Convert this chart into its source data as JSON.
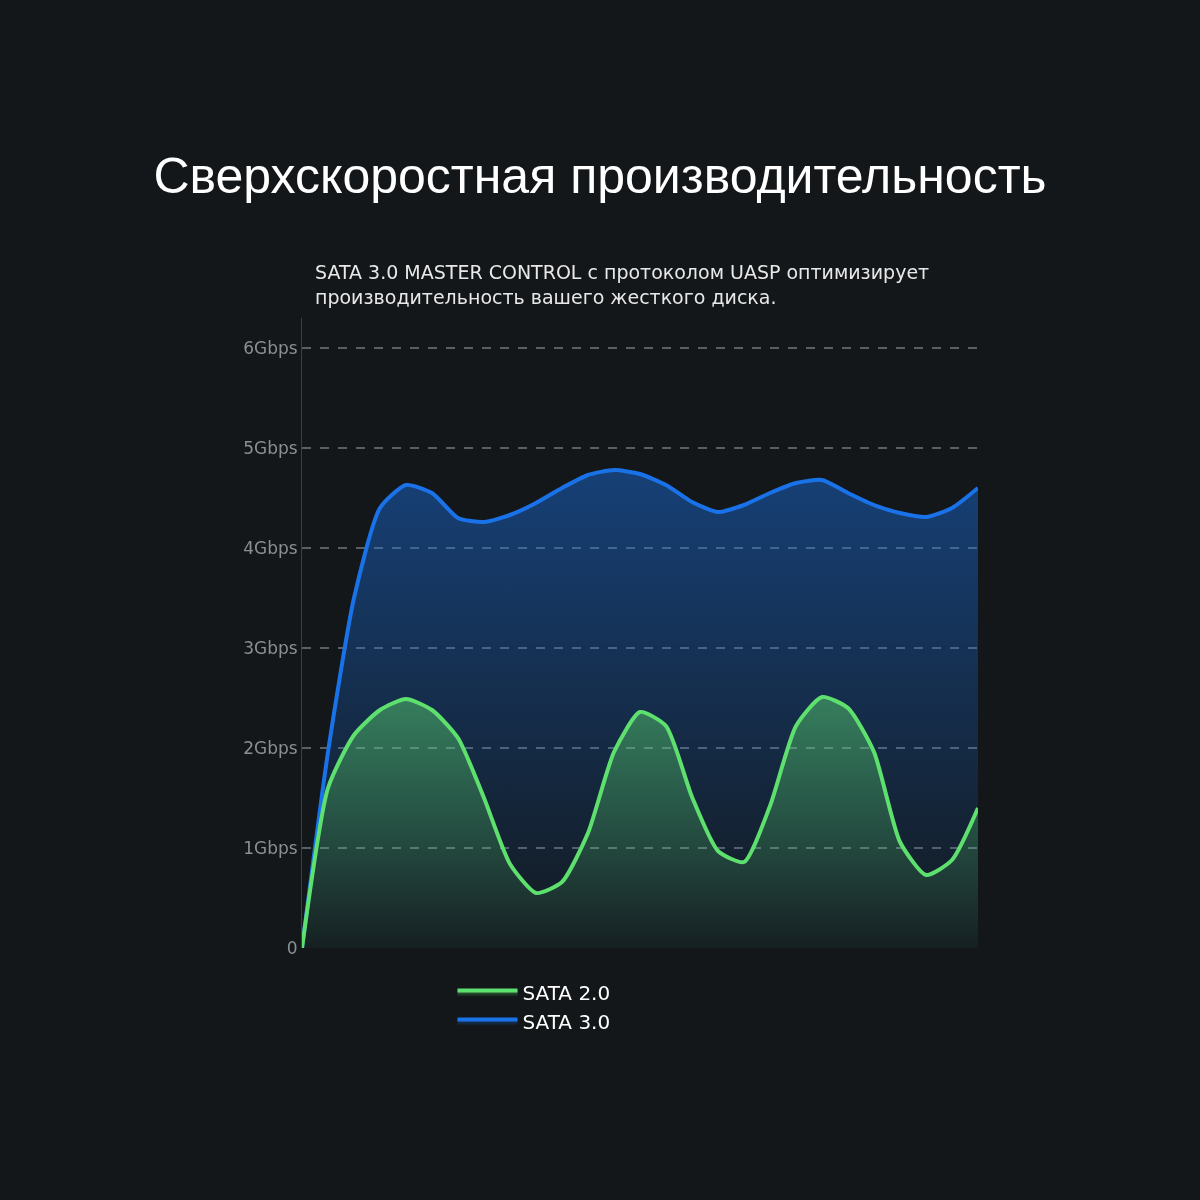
{
  "chart_data": {
    "type": "area",
    "title": "Сверхскоростная производительность",
    "subtitle": "SATA 3.0 MASTER CONTROL с протоколом UASP оптимизирует\nпроизводительность вашего жесткого диска.",
    "categories": [
      null,
      null,
      null,
      null,
      null,
      null,
      null,
      null,
      null,
      null,
      null,
      null,
      null,
      null,
      null,
      null,
      null,
      null,
      null,
      null,
      null,
      null,
      null,
      null,
      null,
      null,
      null
    ],
    "series": [
      {
        "name": "SATA 2.0",
        "color": "#5ee06e",
        "values": [
          0,
          1.6,
          2.13,
          2.38,
          2.49,
          2.38,
          2.1,
          1.5,
          0.84,
          0.55,
          0.66,
          1.15,
          1.96,
          2.36,
          2.22,
          1.51,
          0.97,
          0.86,
          1.42,
          2.22,
          2.51,
          2.4,
          1.96,
          1.06,
          0.73,
          0.88,
          1.4
        ]
      },
      {
        "name": "SATA 3.0",
        "color": "#1a72e8",
        "values": [
          0,
          1.96,
          3.5,
          4.4,
          4.63,
          4.55,
          4.3,
          4.26,
          4.33,
          4.45,
          4.6,
          4.73,
          4.78,
          4.74,
          4.63,
          4.46,
          4.36,
          4.43,
          4.55,
          4.65,
          4.68,
          4.55,
          4.43,
          4.35,
          4.31,
          4.4,
          4.6
        ]
      }
    ],
    "ylim": [
      0,
      6.3
    ],
    "yticks": [
      0,
      {
        "value": 1,
        "label": "1Gbps"
      },
      {
        "value": 2,
        "label": "2Gbps"
      },
      {
        "value": 3,
        "label": "3Gbps"
      },
      {
        "value": 4,
        "label": "4Gbps"
      },
      {
        "value": 5,
        "label": "5Gbps"
      },
      {
        "value": 6,
        "label": "6Gbps"
      }
    ],
    "grid": "y",
    "legend": "bottom",
    "marker": "none",
    "line_style": "solid",
    "tick_labels": "y"
  }
}
